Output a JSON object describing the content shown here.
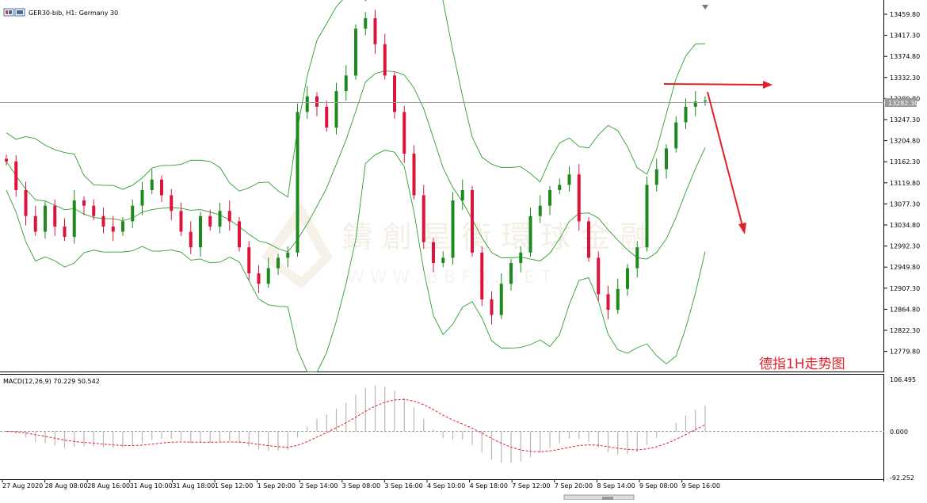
{
  "header": {
    "symbol_text": "GER30-bib, H1:  Germany 30"
  },
  "annotation": {
    "title": "德指1H走势图",
    "color": "#e0202a"
  },
  "watermark": {
    "line1": "鑄 創 星 衡 環 球 金 融",
    "line2": "W W W . B B F X . N E T"
  },
  "price_axis": {
    "labels": [
      "13459.80",
      "13417.30",
      "13374.80",
      "13332.30",
      "13289.80",
      "13247.30",
      "13204.80",
      "13162.30",
      "13119.80",
      "13077.30",
      "13034.80",
      "12992.30",
      "12949.80",
      "12907.30",
      "12864.80",
      "12822.30",
      "12779.80"
    ],
    "current_price": "13282.30"
  },
  "macd": {
    "label": "MACD(12,26,9) 70.229 50.542",
    "axis_labels": [
      "106.495",
      "0.000",
      "-92.252"
    ]
  },
  "time_axis": {
    "labels": [
      "27 Aug 2020",
      "28 Aug 08:00",
      "28 Aug 16:00",
      "31 Aug 10:00",
      "31 Aug 18:00",
      "1 Sep 12:00",
      "1 Sep 20:00",
      "2 Sep 14:00",
      "3 Sep 08:00",
      "3 Sep 16:00",
      "4 Sep 10:00",
      "4 Sep 18:00",
      "7 Sep 12:00",
      "7 Sep 20:00",
      "8 Sep 14:00",
      "9 Sep 08:00",
      "9 Sep 16:00"
    ]
  },
  "colors": {
    "bull": "#1e8a1e",
    "bear": "#dc143c",
    "bands": "#2e9e2e",
    "macd_signal": "#e0202a",
    "macd_hist": "#b8b8b8",
    "arrow": "#e0202a"
  },
  "chart_data": {
    "type": "candlestick",
    "timeframe": "H1",
    "indicators": [
      "Bollinger Bands",
      "MACD(12,26,9)"
    ],
    "y_range": [
      12760,
      13475
    ],
    "close_approx": [
      13165,
      13110,
      13060,
      13030,
      13080,
      13040,
      13020,
      13090,
      13080,
      13060,
      13040,
      13030,
      13050,
      13080,
      13110,
      13130,
      13100,
      13070,
      13030,
      13000,
      13060,
      13040,
      13070,
      13050,
      13000,
      12950,
      12930,
      12960,
      12980,
      12990,
      13260,
      13290,
      13270,
      13230,
      13300,
      13330,
      13420,
      13440,
      13390,
      13330,
      13260,
      13180,
      13100,
      13010,
      12970,
      12980,
      13090,
      13110,
      12990,
      12900,
      12870,
      12930,
      12970,
      12990,
      13060,
      13080,
      13110,
      13120,
      13140,
      13050,
      12980,
      12910,
      12880,
      12920,
      12960,
      13000,
      13120,
      13150,
      13190,
      13240,
      13270,
      13280,
      13282
    ]
  }
}
